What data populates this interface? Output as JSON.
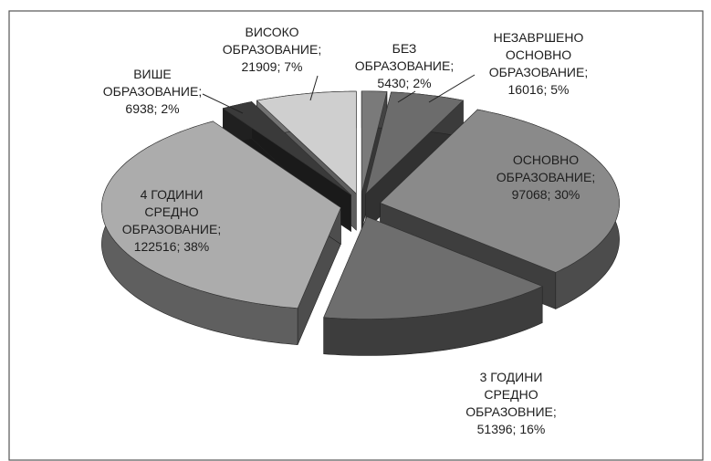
{
  "chart_data": {
    "type": "pie",
    "values": [
      5430,
      16016,
      97068,
      51396,
      122516,
      6938,
      21909
    ],
    "value_labels": [
      "БЕЗ\nОБРАЗОВАНИЕ;\n5430; 2%",
      "НЕЗАВРШЕНО\nОСНОВНО\nОБРАЗОВАНИЕ;\n16016; 5%",
      "ОСНОВНО\nОБРАЗОВАНИЕ;\n97068; 30%",
      "3 ГОДИНИ\nСРЕДНО\nОБРАЗОВНИЕ;\n51396; 16%",
      "4 ГОДИНИ\nСРЕДНО\nОБРАЗОВАНИЕ;\n122516; 38%",
      "ВИШЕ\nОБРАЗОВАНИЕ;\n6938; 2%",
      "ВИСОКО\nОБРАЗОВАНИЕ;\n21909; 7%"
    ],
    "colors": [
      "#7a7a7a",
      "#6c6c6c",
      "#8a8a8a",
      "#6e6e6e",
      "#acacac",
      "#3a3a3a",
      "#cfcfcf"
    ]
  }
}
